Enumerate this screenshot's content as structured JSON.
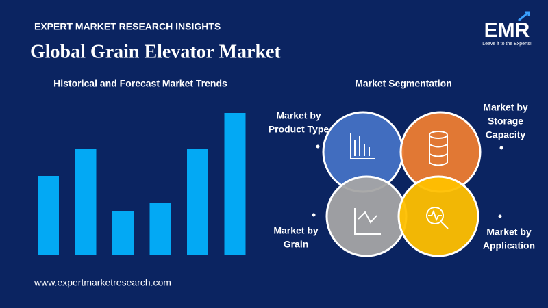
{
  "header": {
    "kicker": "EXPERT MARKET RESEARCH INSIGHTS",
    "title": "Global Grain Elevator Market"
  },
  "logo": {
    "text": "EMR",
    "tagline": "Leave it to the Experts!"
  },
  "chart_data": {
    "type": "bar",
    "title": "Historical and Forecast Market Trends",
    "categories": [
      null,
      null,
      null,
      null,
      null,
      null
    ],
    "values": [
      115,
      154,
      63,
      76,
      154,
      207
    ],
    "color": "#03a9f4"
  },
  "segmentation": {
    "title": "Market Segmentation",
    "segments": [
      {
        "lines": [
          "Market by",
          "Product Type"
        ],
        "color": "#4472c4"
      },
      {
        "lines": [
          "Market by",
          "Storage",
          "Capacity"
        ],
        "color": "#ed7d31"
      },
      {
        "lines": [
          "Market by",
          "Grain"
        ],
        "color": "#a5a5a5"
      },
      {
        "lines": [
          "Market by",
          "Application"
        ],
        "color": "#ffc000"
      }
    ]
  },
  "footer": {
    "url": "www.expertmarketresearch.com"
  }
}
